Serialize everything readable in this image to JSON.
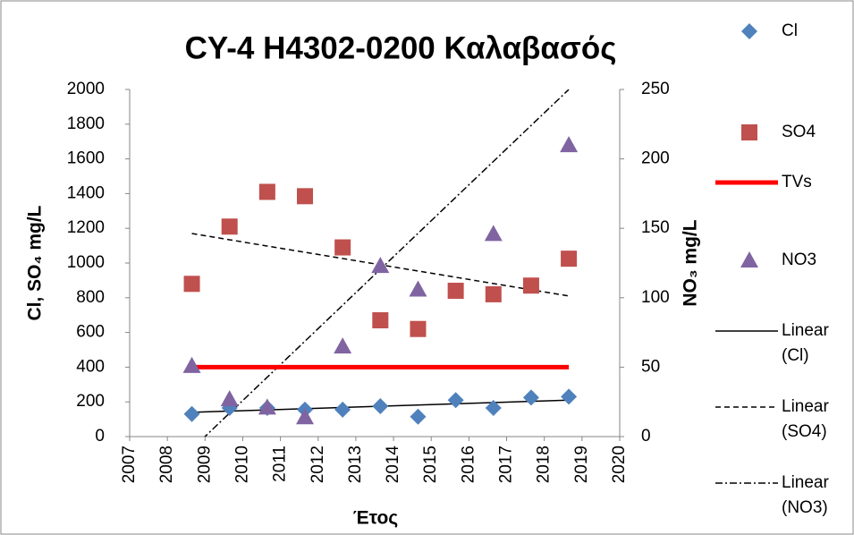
{
  "chart_data": {
    "type": "scatter",
    "title": "CY-4 H4302-0200 Καλαβασός",
    "x_label": "Έτος",
    "y_label": "Cl, SO₄ mg/L",
    "y2_label": "NO₃ mg/L",
    "x": [
      2008.65,
      2009.65,
      2010.65,
      2011.65,
      2012.65,
      2013.65,
      2014.65,
      2015.65,
      2016.65,
      2017.65,
      2018.65
    ],
    "xlim": [
      2007,
      2020
    ],
    "xticks": [
      2007,
      2008,
      2009,
      2010,
      2011,
      2012,
      2013,
      2014,
      2015,
      2016,
      2017,
      2018,
      2019,
      2020
    ],
    "ylim": [
      0,
      2000
    ],
    "yticks": [
      0,
      200,
      400,
      600,
      800,
      1000,
      1200,
      1400,
      1600,
      1800,
      2000
    ],
    "y2lim": [
      0,
      250
    ],
    "y2ticks": [
      0,
      50,
      100,
      150,
      200,
      250
    ],
    "series": [
      {
        "name": "Cl",
        "color": "#4f81bd",
        "marker": "diamond",
        "values": [
          130,
          165,
          165,
          155,
          155,
          175,
          115,
          210,
          165,
          225,
          230
        ]
      },
      {
        "name": "SO4",
        "color": "#c0504d",
        "marker": "square",
        "values": [
          880,
          1210,
          1410,
          1385,
          1090,
          670,
          620,
          840,
          820,
          870,
          1025
        ]
      },
      {
        "name": "TVs",
        "color": "#ff0000",
        "marker": "line",
        "values": [
          400,
          400,
          400,
          400,
          400,
          400,
          400,
          400,
          400,
          400,
          400
        ]
      },
      {
        "name": "NO3",
        "color": "#8064a2",
        "marker": "triangle",
        "axis": "y2",
        "values": [
          51,
          27,
          21,
          14,
          65,
          123,
          106,
          null,
          146,
          null,
          210
        ]
      },
      {
        "name": "Linear (Cl)",
        "color": "#000000",
        "marker": "trend",
        "dash": "solid",
        "x": [
          2008.65,
          2018.65
        ],
        "values": [
          140,
          210
        ]
      },
      {
        "name": "Linear (SO4)",
        "color": "#000000",
        "marker": "trend",
        "dash": "dashed",
        "x": [
          2008.65,
          2018.65
        ],
        "values": [
          1170,
          810
        ]
      },
      {
        "name": "Linear (NO3)",
        "color": "#000000",
        "marker": "trend",
        "dash": "dashdot",
        "axis": "y2",
        "x": [
          2008.65,
          2018.65
        ],
        "values": [
          -9,
          250
        ]
      }
    ]
  }
}
